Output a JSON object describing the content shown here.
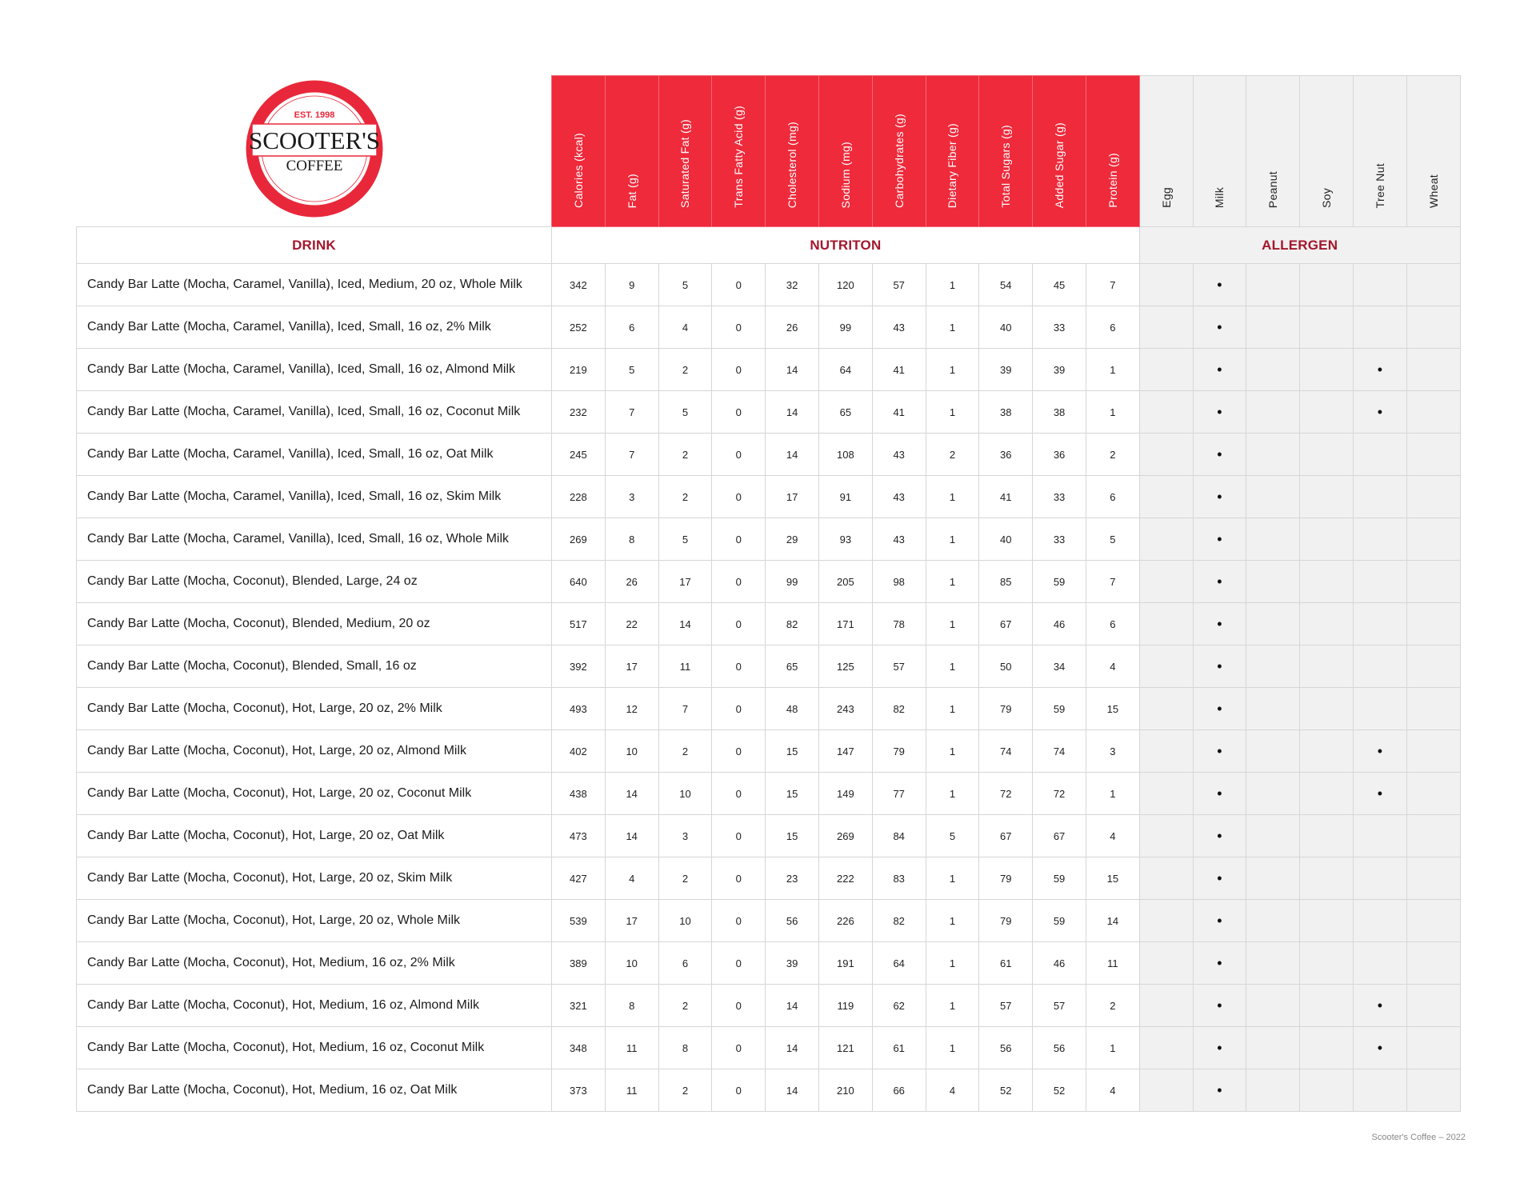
{
  "logo": {
    "text_top": "EST. 1998",
    "text_main": "SCOOTER'S",
    "text_sub": "COFFEE",
    "color": "#e8283a"
  },
  "colors": {
    "header_red": "#ee2a3b",
    "section_label": "#a3172c",
    "allergen_bg": "#f1f1f1"
  },
  "sections": {
    "drink": "DRINK",
    "nutrition": "NUTRITON",
    "allergen": "ALLERGEN"
  },
  "nutrition_headers": [
    "Calories (kcal)",
    "Fat (g)",
    "Saturated Fat (g)",
    "Trans Fatty Acid (g)",
    "Cholesterol (mg)",
    "Sodium (mg)",
    "Carbohydrates (g)",
    "Dietary Fiber (g)",
    "Total Sugars (g)",
    "Added Sugar (g)",
    "Protein (g)"
  ],
  "allergen_headers": [
    "Egg",
    "Milk",
    "Peanut",
    "Soy",
    "Tree Nut",
    "Wheat"
  ],
  "allergen_mark": "•",
  "rows": [
    {
      "name": "Candy Bar Latte (Mocha, Caramel, Vanilla), Iced, Medium, 20 oz, Whole Milk",
      "values": [
        "342",
        "9",
        "5",
        "0",
        "32",
        "120",
        "57",
        "1",
        "54",
        "45",
        "7"
      ],
      "allergens": [
        false,
        true,
        false,
        false,
        false,
        false
      ]
    },
    {
      "name": "Candy Bar Latte (Mocha, Caramel, Vanilla), Iced, Small, 16 oz, 2% Milk",
      "values": [
        "252",
        "6",
        "4",
        "0",
        "26",
        "99",
        "43",
        "1",
        "40",
        "33",
        "6"
      ],
      "allergens": [
        false,
        true,
        false,
        false,
        false,
        false
      ]
    },
    {
      "name": "Candy Bar Latte (Mocha, Caramel, Vanilla), Iced, Small, 16 oz, Almond Milk",
      "values": [
        "219",
        "5",
        "2",
        "0",
        "14",
        "64",
        "41",
        "1",
        "39",
        "39",
        "1"
      ],
      "allergens": [
        false,
        true,
        false,
        false,
        true,
        false
      ]
    },
    {
      "name": "Candy Bar Latte (Mocha, Caramel, Vanilla), Iced, Small, 16 oz, Coconut Milk",
      "values": [
        "232",
        "7",
        "5",
        "0",
        "14",
        "65",
        "41",
        "1",
        "38",
        "38",
        "1"
      ],
      "allergens": [
        false,
        true,
        false,
        false,
        true,
        false
      ]
    },
    {
      "name": "Candy Bar Latte (Mocha, Caramel, Vanilla), Iced, Small, 16 oz, Oat Milk",
      "values": [
        "245",
        "7",
        "2",
        "0",
        "14",
        "108",
        "43",
        "2",
        "36",
        "36",
        "2"
      ],
      "allergens": [
        false,
        true,
        false,
        false,
        false,
        false
      ]
    },
    {
      "name": "Candy Bar Latte (Mocha, Caramel, Vanilla), Iced, Small, 16 oz, Skim Milk",
      "values": [
        "228",
        "3",
        "2",
        "0",
        "17",
        "91",
        "43",
        "1",
        "41",
        "33",
        "6"
      ],
      "allergens": [
        false,
        true,
        false,
        false,
        false,
        false
      ]
    },
    {
      "name": "Candy Bar Latte (Mocha, Caramel, Vanilla), Iced, Small, 16 oz, Whole Milk",
      "values": [
        "269",
        "8",
        "5",
        "0",
        "29",
        "93",
        "43",
        "1",
        "40",
        "33",
        "5"
      ],
      "allergens": [
        false,
        true,
        false,
        false,
        false,
        false
      ]
    },
    {
      "name": "Candy Bar Latte (Mocha, Coconut), Blended, Large, 24 oz",
      "values": [
        "640",
        "26",
        "17",
        "0",
        "99",
        "205",
        "98",
        "1",
        "85",
        "59",
        "7"
      ],
      "allergens": [
        false,
        true,
        false,
        false,
        false,
        false
      ]
    },
    {
      "name": "Candy Bar Latte (Mocha, Coconut), Blended, Medium, 20 oz",
      "values": [
        "517",
        "22",
        "14",
        "0",
        "82",
        "171",
        "78",
        "1",
        "67",
        "46",
        "6"
      ],
      "allergens": [
        false,
        true,
        false,
        false,
        false,
        false
      ]
    },
    {
      "name": "Candy Bar Latte (Mocha, Coconut), Blended, Small, 16 oz",
      "values": [
        "392",
        "17",
        "11",
        "0",
        "65",
        "125",
        "57",
        "1",
        "50",
        "34",
        "4"
      ],
      "allergens": [
        false,
        true,
        false,
        false,
        false,
        false
      ]
    },
    {
      "name": "Candy Bar Latte (Mocha, Coconut), Hot, Large, 20 oz, 2% Milk",
      "values": [
        "493",
        "12",
        "7",
        "0",
        "48",
        "243",
        "82",
        "1",
        "79",
        "59",
        "15"
      ],
      "allergens": [
        false,
        true,
        false,
        false,
        false,
        false
      ]
    },
    {
      "name": "Candy Bar Latte (Mocha, Coconut), Hot, Large, 20 oz, Almond Milk",
      "values": [
        "402",
        "10",
        "2",
        "0",
        "15",
        "147",
        "79",
        "1",
        "74",
        "74",
        "3"
      ],
      "allergens": [
        false,
        true,
        false,
        false,
        true,
        false
      ]
    },
    {
      "name": "Candy Bar Latte (Mocha, Coconut), Hot, Large, 20 oz, Coconut Milk",
      "values": [
        "438",
        "14",
        "10",
        "0",
        "15",
        "149",
        "77",
        "1",
        "72",
        "72",
        "1"
      ],
      "allergens": [
        false,
        true,
        false,
        false,
        true,
        false
      ]
    },
    {
      "name": "Candy Bar Latte (Mocha, Coconut), Hot, Large, 20 oz, Oat Milk",
      "values": [
        "473",
        "14",
        "3",
        "0",
        "15",
        "269",
        "84",
        "5",
        "67",
        "67",
        "4"
      ],
      "allergens": [
        false,
        true,
        false,
        false,
        false,
        false
      ]
    },
    {
      "name": "Candy Bar Latte (Mocha, Coconut), Hot, Large, 20 oz, Skim Milk",
      "values": [
        "427",
        "4",
        "2",
        "0",
        "23",
        "222",
        "83",
        "1",
        "79",
        "59",
        "15"
      ],
      "allergens": [
        false,
        true,
        false,
        false,
        false,
        false
      ]
    },
    {
      "name": "Candy Bar Latte (Mocha, Coconut), Hot, Large, 20 oz, Whole Milk",
      "values": [
        "539",
        "17",
        "10",
        "0",
        "56",
        "226",
        "82",
        "1",
        "79",
        "59",
        "14"
      ],
      "allergens": [
        false,
        true,
        false,
        false,
        false,
        false
      ]
    },
    {
      "name": "Candy Bar Latte (Mocha, Coconut), Hot, Medium, 16 oz, 2% Milk",
      "values": [
        "389",
        "10",
        "6",
        "0",
        "39",
        "191",
        "64",
        "1",
        "61",
        "46",
        "11"
      ],
      "allergens": [
        false,
        true,
        false,
        false,
        false,
        false
      ]
    },
    {
      "name": "Candy Bar Latte (Mocha, Coconut), Hot, Medium, 16 oz, Almond Milk",
      "values": [
        "321",
        "8",
        "2",
        "0",
        "14",
        "119",
        "62",
        "1",
        "57",
        "57",
        "2"
      ],
      "allergens": [
        false,
        true,
        false,
        false,
        true,
        false
      ]
    },
    {
      "name": "Candy Bar Latte (Mocha, Coconut), Hot, Medium, 16 oz, Coconut Milk",
      "values": [
        "348",
        "11",
        "8",
        "0",
        "14",
        "121",
        "61",
        "1",
        "56",
        "56",
        "1"
      ],
      "allergens": [
        false,
        true,
        false,
        false,
        true,
        false
      ]
    },
    {
      "name": "Candy Bar Latte (Mocha, Coconut), Hot, Medium, 16 oz, Oat Milk",
      "values": [
        "373",
        "11",
        "2",
        "0",
        "14",
        "210",
        "66",
        "4",
        "52",
        "52",
        "4"
      ],
      "allergens": [
        false,
        true,
        false,
        false,
        false,
        false
      ]
    }
  ],
  "footer": "Scooter's Coffee – 2022"
}
